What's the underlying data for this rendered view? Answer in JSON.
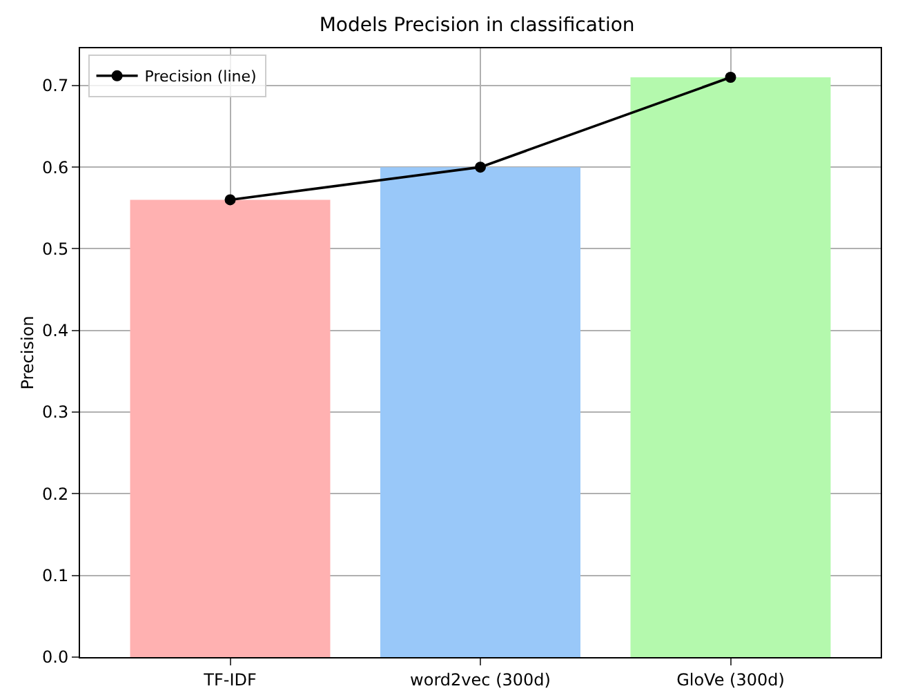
{
  "chart_data": {
    "type": "bar",
    "title": "Models Precision in classification",
    "ylabel": "Precision",
    "categories": [
      "TF-IDF",
      "word2vec (300d)",
      "GloVe (300d)"
    ],
    "series": [
      {
        "colors": [
          "#ffb1b1",
          "#99c8f9",
          "#b4f9ad"
        ],
        "values": [
          0.56,
          0.6,
          0.71
        ]
      },
      {
        "type": "line",
        "name": "Precision (line)",
        "color": "#000000",
        "values": [
          0.56,
          0.6,
          0.71
        ],
        "marker": "circle",
        "line_style": "solid"
      }
    ],
    "ylim": [
      0,
      0.7455
    ],
    "yticks": [
      {
        "value": 0,
        "label": "0.0"
      },
      0.1,
      0.2,
      0.3,
      0.4,
      0.5,
      0.6,
      0.7
    ],
    "grid": true,
    "legend": "top left"
  }
}
